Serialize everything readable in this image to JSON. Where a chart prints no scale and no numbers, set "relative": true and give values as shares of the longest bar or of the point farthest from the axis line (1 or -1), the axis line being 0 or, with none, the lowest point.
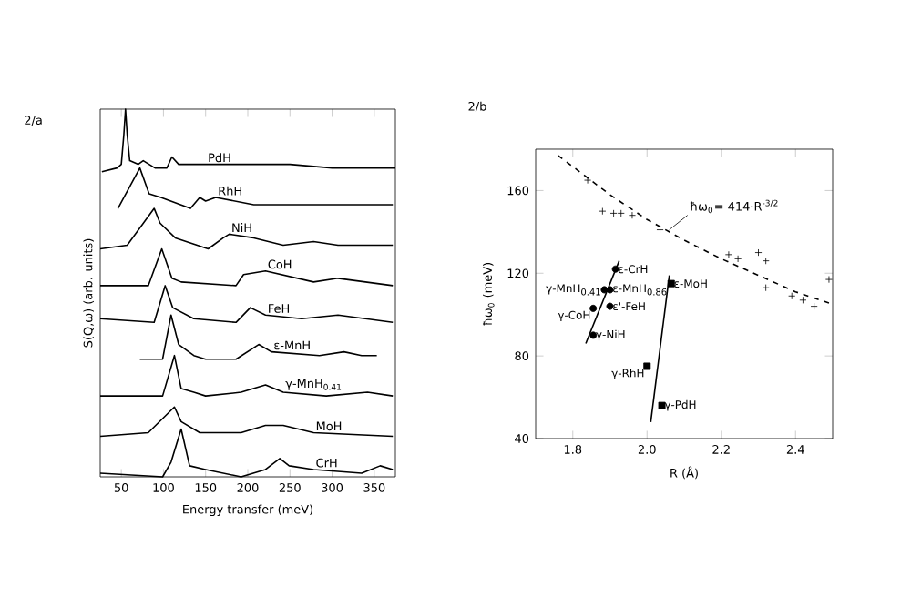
{
  "chart_data": [
    {
      "type": "line",
      "title": "2/a",
      "xlabel": "Energy transfer (meV)",
      "ylabel": "S(Q,ω) (arb. units)",
      "relative": true,
      "xlim": [
        25,
        375
      ],
      "xticks": [
        50,
        100,
        150,
        200,
        250,
        300,
        350
      ],
      "tick_labels": "x",
      "line_style": "solid",
      "series": [
        {
          "name": "PdH",
          "color": "#000000",
          "x": [
            27,
            45,
            50,
            53,
            55,
            57,
            60,
            70,
            76,
            90,
            104,
            110,
            118,
            150,
            250,
            300,
            375
          ],
          "values": [
            0.83,
            0.84,
            0.85,
            0.93,
            1.0,
            0.93,
            0.86,
            0.85,
            0.86,
            0.84,
            0.84,
            0.87,
            0.85,
            0.85,
            0.85,
            0.84,
            0.84
          ]
        },
        {
          "name": "RhH",
          "color": "#000000",
          "x": [
            46,
            72,
            83,
            97,
            132,
            143,
            150,
            162,
            207,
            228,
            372
          ],
          "values": [
            0.73,
            0.84,
            0.77,
            0.76,
            0.73,
            0.76,
            0.75,
            0.76,
            0.74,
            0.74,
            0.74
          ]
        },
        {
          "name": "NiH",
          "color": "#000000",
          "x": [
            25,
            57,
            89,
            96,
            114,
            153,
            171,
            178,
            207,
            242,
            278,
            307,
            372
          ],
          "values": [
            0.62,
            0.63,
            0.73,
            0.69,
            0.65,
            0.62,
            0.65,
            0.66,
            0.65,
            0.63,
            0.64,
            0.63,
            0.63
          ]
        },
        {
          "name": "CoH",
          "color": "#000000",
          "x": [
            25,
            82,
            98,
            110,
            121,
            186,
            195,
            221,
            278,
            307,
            372
          ],
          "values": [
            0.52,
            0.52,
            0.62,
            0.54,
            0.53,
            0.52,
            0.55,
            0.56,
            0.53,
            0.54,
            0.52
          ]
        },
        {
          "name": "FeH",
          "color": "#000000",
          "x": [
            25,
            89,
            102,
            111,
            136,
            186,
            203,
            221,
            264,
            307,
            372
          ],
          "values": [
            0.43,
            0.42,
            0.52,
            0.46,
            0.43,
            0.42,
            0.46,
            0.44,
            0.43,
            0.44,
            0.42
          ]
        },
        {
          "name": "ε-MnH",
          "color": "#000000",
          "x": [
            72,
            99,
            109,
            118,
            136,
            150,
            186,
            213,
            228,
            285,
            314,
            335,
            353
          ],
          "values": [
            0.32,
            0.32,
            0.44,
            0.36,
            0.33,
            0.32,
            0.32,
            0.36,
            0.34,
            0.33,
            0.34,
            0.33,
            0.33
          ]
        },
        {
          "name": "γ-MnH$_{0.41}$",
          "color": "#000000",
          "x": [
            25,
            99,
            113,
            121,
            136,
            150,
            192,
            221,
            242,
            293,
            342,
            372
          ],
          "values": [
            0.22,
            0.22,
            0.33,
            0.24,
            0.23,
            0.22,
            0.23,
            0.25,
            0.23,
            0.22,
            0.23,
            0.22
          ]
        },
        {
          "name": "MoH",
          "color": "#000000",
          "x": [
            25,
            82,
            113,
            121,
            143,
            192,
            221,
            242,
            278,
            372
          ],
          "values": [
            0.11,
            0.12,
            0.19,
            0.15,
            0.12,
            0.12,
            0.14,
            0.14,
            0.12,
            0.11
          ]
        },
        {
          "name": "CrH",
          "color": "#000000",
          "x": [
            25,
            99,
            109,
            121,
            131,
            150,
            192,
            221,
            238,
            249,
            278,
            335,
            357,
            372
          ],
          "values": [
            0.01,
            0,
            0.04,
            0.13,
            0.03,
            0.02,
            0,
            0.02,
            0.05,
            0.03,
            0.02,
            0.01,
            0.03,
            0.02
          ]
        }
      ]
    },
    {
      "type": "scatter",
      "title": "2/b",
      "xlabel": "R (Å)",
      "ylabel": "ħω$_{0}$ (meV)",
      "xlim": [
        1.7,
        2.5
      ],
      "ylim": [
        40,
        180
      ],
      "xticks": [
        1.8,
        {
          "value": 2.0,
          "label": "2.0"
        },
        2.2,
        2.4
      ],
      "yticks": [
        40,
        80,
        120,
        160
      ],
      "series": [
        {
          "color": "#000000",
          "marker": "cross",
          "x": [
            1.84,
            1.88,
            1.91,
            1.93,
            1.96,
            2.035,
            2.22,
            2.245,
            2.3,
            2.32,
            2.32,
            2.39,
            2.42,
            2.45,
            2.49
          ],
          "values": [
            165,
            150,
            149,
            149,
            148,
            141,
            129,
            127,
            130,
            126,
            113,
            109,
            107,
            104,
            117
          ]
        },
        {
          "color": "#000000",
          "marker": "circle",
          "x": [
            1.915,
            1.885,
            1.9,
            1.855,
            1.9,
            1.855
          ],
          "values": [
            122,
            112,
            112,
            103,
            104,
            90
          ]
        },
        {
          "color": "#000000",
          "marker": "square",
          "x": [
            2.065,
            2.0,
            2.04
          ],
          "values": [
            115,
            75,
            56
          ]
        },
        {
          "type": "line",
          "line_style": "solid",
          "color": "#000000",
          "x": [
            1.835,
            1.925
          ],
          "values": [
            86,
            126
          ]
        },
        {
          "type": "line",
          "line_style": "solid",
          "color": "#000000",
          "x": [
            2.01,
            2.06
          ],
          "values": [
            48,
            119
          ]
        },
        {
          "type": "line",
          "line_style": "dashed",
          "color": "#000000",
          "x": [
            1.76,
            1.9,
            2.0,
            2.1,
            2.2,
            2.3,
            2.4,
            2.5
          ],
          "values": [
            177,
            158,
            146,
            136,
            127,
            119,
            111,
            105
          ]
        }
      ],
      "annotations": [
        {
          "text": "ε-CrH",
          "x": 1.915,
          "y": 122
        },
        {
          "text": "γ-MnH$_{0.41}$",
          "x": 1.885,
          "y": 112
        },
        {
          "text": "ε-MnH$_{0.86}$",
          "x": 1.9,
          "y": 112
        },
        {
          "text": "γ-CoH",
          "x": 1.855,
          "y": 103
        },
        {
          "text": "ε'-FeH",
          "x": 1.9,
          "y": 104
        },
        {
          "text": "γ-NiH",
          "x": 1.855,
          "y": 90
        },
        {
          "text": "ε-MoH",
          "x": 2.065,
          "y": 115
        },
        {
          "text": "γ-RhH",
          "x": 2.0,
          "y": 75
        },
        {
          "text": "γ-PdH",
          "x": 2.04,
          "y": 56
        },
        {
          "text": "ħω$_{0}$= 414·R$^{-3/2}$",
          "x": 2.06,
          "y": 141
        }
      ]
    }
  ]
}
